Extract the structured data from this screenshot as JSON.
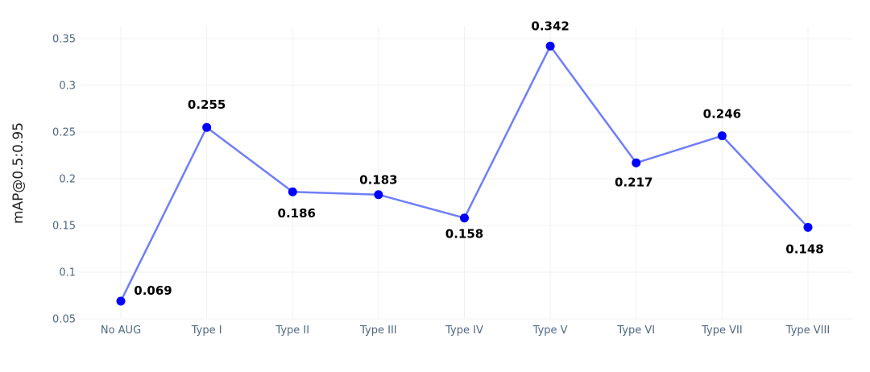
{
  "chart_data": {
    "type": "line",
    "categories": [
      "No AUG",
      "Type I",
      "Type II",
      "Type III",
      "Type IV",
      "Type V",
      "Type VI",
      "Type VII",
      "Type VIII"
    ],
    "series": [
      {
        "values": [
          0.069,
          0.255,
          0.186,
          0.183,
          0.158,
          0.342,
          0.217,
          0.246,
          0.148
        ],
        "data_labels": [
          "0.069",
          "0.255",
          "0.186",
          "0.183",
          "0.158",
          "0.342",
          "0.217",
          "0.246",
          "0.148"
        ],
        "line_color": "#6f7ef8",
        "marker_color": "#0000ff"
      }
    ],
    "ylabel": "mAP@0.5:0.95",
    "xlabel": "",
    "ylim": [
      0.05,
      0.35
    ],
    "yticks": [
      0.05,
      0.1,
      0.15,
      0.2,
      0.25,
      0.3,
      0.35
    ],
    "ytick_labels": [
      "0.05",
      "0.1",
      "0.15",
      "0.2",
      "0.25",
      "0.3",
      "0.35"
    ],
    "grid": true,
    "legend": "none"
  }
}
